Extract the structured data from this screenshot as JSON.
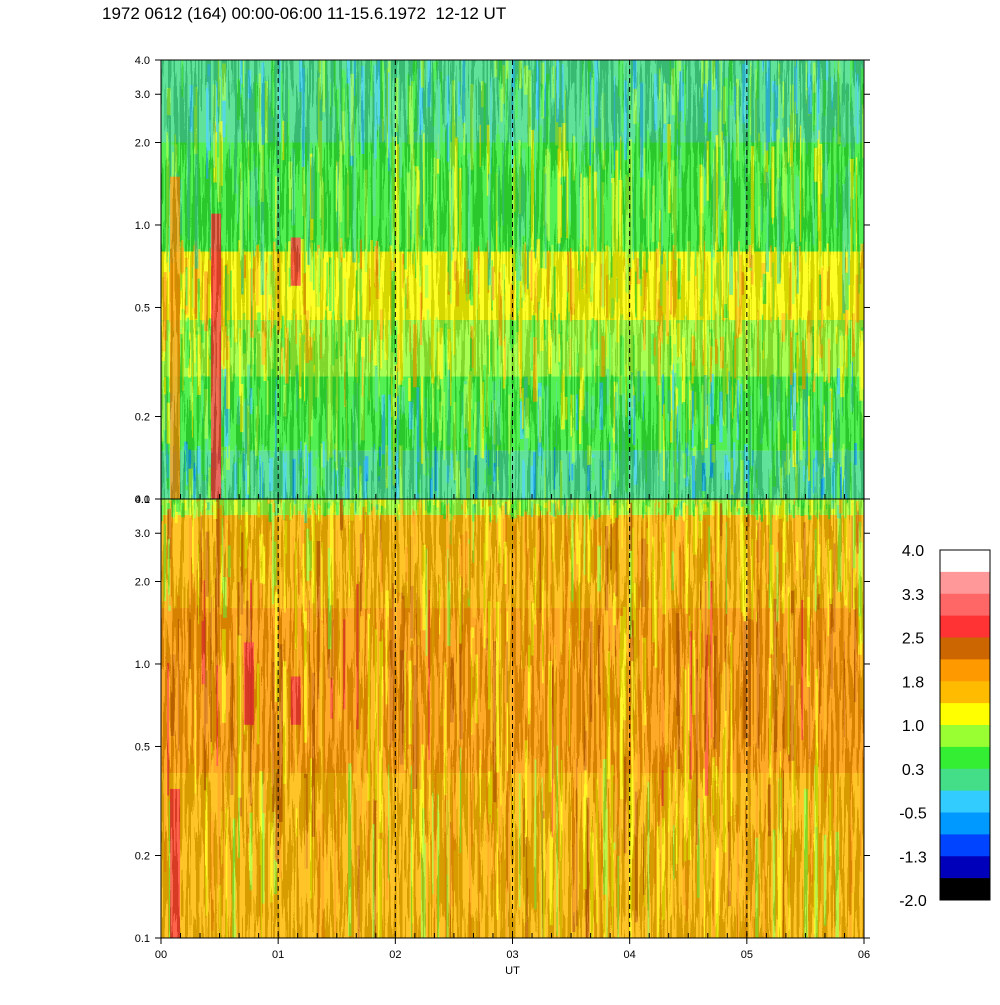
{
  "title": "1972 0612 (164) 00:00-06:00 11-15.6.1972  12-12 UT",
  "chart_data": {
    "type": "heatmap",
    "title": "1972 0612 (164) 00:00-06:00 11-15.6.1972  12-12 UT",
    "xlabel": "UT",
    "x_ticks": [
      "00",
      "01",
      "02",
      "03",
      "04",
      "05",
      "06"
    ],
    "xlim": [
      0,
      6
    ],
    "y_scale": "log",
    "ylim": [
      0.1,
      4.0
    ],
    "y_ticks": [
      "4.0",
      "3.0",
      "2.0",
      "1.0",
      "0.5",
      "0.2",
      "0.1"
    ],
    "grid_x": "dashed vertical lines at hour marks",
    "panels": [
      {
        "name": "upper",
        "bands": [
          {
            "y": [
              0.1,
              0.15
            ],
            "level": 0.0,
            "color_note": "green / cyan"
          },
          {
            "y": [
              0.15,
              0.28
            ],
            "level": 0.4,
            "color_note": "green"
          },
          {
            "y": [
              0.28,
              0.45
            ],
            "level": 1.0,
            "color_note": "yellow-green / yellow"
          },
          {
            "y": [
              0.45,
              0.8
            ],
            "level": 1.2,
            "color_note": "yellow / orange before 02 UT"
          },
          {
            "y": [
              0.8,
              2.0
            ],
            "level": 0.6,
            "color_note": "green / yellow-green"
          },
          {
            "y": [
              2.0,
              4.0
            ],
            "level": 0.2,
            "color_note": "green / sea-green"
          }
        ],
        "features": [
          {
            "x": 0.12,
            "note": "orange vertical streak near 00:07 UT, 0.1-1.5"
          },
          {
            "x": 0.47,
            "note": "orange-red streak near 00:28 UT"
          },
          {
            "x": 1.15,
            "note": "red patch near 01:09 UT around 0.6-0.9"
          }
        ]
      },
      {
        "name": "lower",
        "bands": [
          {
            "y": [
              0.1,
              0.4
            ],
            "level": 1.5,
            "color_note": "orange / yellow"
          },
          {
            "y": [
              0.4,
              1.6
            ],
            "level": 1.9,
            "color_note": "orange, dark orange patches 00:30-01:30"
          },
          {
            "y": [
              1.6,
              3.5
            ],
            "level": 1.6,
            "color_note": "orange / yellow"
          },
          {
            "y": [
              3.5,
              4.0
            ],
            "level": 0.8,
            "color_note": "yellow / green"
          }
        ],
        "features": [
          {
            "x": 0.12,
            "note": "red vertical streak near 00:07 UT, 0.1-0.35"
          },
          {
            "x": 0.75,
            "note": "dark orange / red patch 0.6-1.2"
          },
          {
            "x": 1.15,
            "note": "red patch near 01:09 UT around 0.6-0.9"
          }
        ]
      }
    ],
    "colorbar": {
      "labels": [
        "4.0",
        "3.3",
        "2.5",
        "1.8",
        "1.0",
        "0.3",
        "-0.5",
        "-1.3",
        "-2.0"
      ],
      "range": [
        -2.0,
        4.0
      ],
      "colors": [
        "#ffffff",
        "#ff9999",
        "#ff6666",
        "#ff3333",
        "#cc6600",
        "#ff9900",
        "#ffbb00",
        "#ffff00",
        "#99ff33",
        "#33ee33",
        "#44dd88",
        "#33ccff",
        "#0099ff",
        "#0044ff",
        "#0000bb",
        "#000000"
      ]
    }
  }
}
